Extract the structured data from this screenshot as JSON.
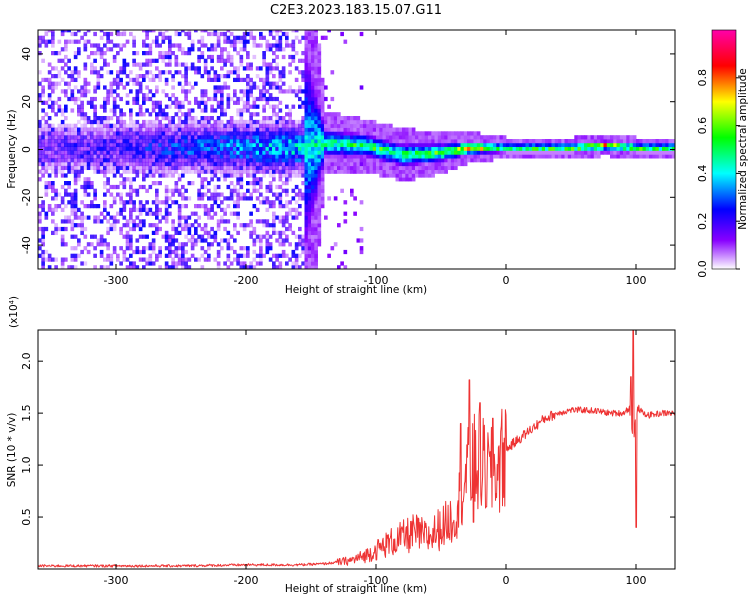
{
  "figure": {
    "title": "C2E3.2023.183.15.07.G11"
  },
  "chart_data": [
    {
      "type": "heatmap",
      "xlabel": "Height of straight line (km)",
      "ylabel": "Frequency (Hz)",
      "xlim": [
        -360,
        130
      ],
      "ylim": [
        -50,
        50
      ],
      "x_ticks": [
        -300,
        -200,
        -100,
        0,
        100
      ],
      "y_ticks": [
        -40,
        -20,
        0,
        20,
        40
      ],
      "grid": false,
      "colorbar": {
        "label": "Normalized spectral amplitude",
        "range": [
          0,
          1
        ],
        "ticks": [
          "0.0",
          "0.2",
          "0.4",
          "0.6",
          "0.8"
        ],
        "tick_values": [
          0.0,
          0.2,
          0.4,
          0.6,
          0.8
        ],
        "colormap": [
          "#ffffff",
          "#8800ff",
          "#0000ff",
          "#00ffff",
          "#00ff00",
          "#ffff00",
          "#ff0000",
          "#ff00aa"
        ]
      },
      "signal_band": [
        {
          "x": -360,
          "center": 0,
          "half_width": 47,
          "peak": 0.15
        },
        {
          "x": -300,
          "center": 0,
          "half_width": 47,
          "peak": 0.18
        },
        {
          "x": -250,
          "center": 0,
          "half_width": 45,
          "peak": 0.25
        },
        {
          "x": -200,
          "center": 0,
          "half_width": 45,
          "peak": 0.3
        },
        {
          "x": -155,
          "center": 0,
          "half_width": 45,
          "peak": 0.35
        },
        {
          "x": -140,
          "center": 2,
          "half_width": 6,
          "peak": 0.45
        },
        {
          "x": -110,
          "center": 1,
          "half_width": 5,
          "peak": 0.5
        },
        {
          "x": -80,
          "center": -3,
          "half_width": 5,
          "peak": 0.5
        },
        {
          "x": -50,
          "center": -2,
          "half_width": 4,
          "peak": 0.55
        },
        {
          "x": -30,
          "center": 0,
          "half_width": 3,
          "peak": 0.75
        },
        {
          "x": 0,
          "center": 0,
          "half_width": 2,
          "peak": 0.55
        },
        {
          "x": 50,
          "center": 0,
          "half_width": 2,
          "peak": 0.6
        },
        {
          "x": 75,
          "center": 1,
          "half_width": 2,
          "peak": 0.9
        },
        {
          "x": 100,
          "center": 0,
          "half_width": 2,
          "peak": 0.6
        },
        {
          "x": 130,
          "center": 0,
          "half_width": 2,
          "peak": 0.55
        }
      ]
    },
    {
      "type": "line",
      "xlabel": "Height of straight line (km)",
      "ylabel": "SNR (10 * v/v)",
      "y_scale_label": "(x10⁴)",
      "xlim": [
        -360,
        130
      ],
      "ylim": [
        0,
        2.3
      ],
      "x_ticks": [
        -300,
        -200,
        -100,
        0,
        100
      ],
      "y_ticks": [
        "0.5",
        "1.0",
        "1.5",
        "2.0"
      ],
      "y_tick_values": [
        0.5,
        1.0,
        1.5,
        2.0
      ],
      "grid": false,
      "color": "#ee3333",
      "series": [
        {
          "x": [
            -360,
            -300,
            -250,
            -200,
            -160,
            -140,
            -120,
            -110,
            -100,
            -90,
            -80,
            -70,
            -60,
            -50,
            -40,
            -35,
            -30,
            -25,
            -20,
            -15,
            -10,
            -5,
            0,
            10,
            20,
            30,
            40,
            50,
            60,
            70,
            80,
            90,
            95,
            98,
            100,
            102,
            105,
            110,
            120,
            130
          ],
          "y": [
            0.03,
            0.03,
            0.03,
            0.04,
            0.04,
            0.05,
            0.08,
            0.12,
            0.18,
            0.25,
            0.3,
            0.35,
            0.3,
            0.4,
            0.5,
            0.7,
            0.9,
            1.0,
            1.0,
            0.95,
            0.9,
            1.0,
            1.15,
            1.25,
            1.35,
            1.45,
            1.5,
            1.53,
            1.53,
            1.52,
            1.5,
            1.5,
            1.55,
            1.2,
            1.5,
            1.55,
            1.5,
            1.48,
            1.5,
            1.5
          ],
          "spikes": [
            [
              -35,
              1.4
            ],
            [
              -28,
              1.82
            ],
            [
              -25,
              0.45
            ],
            [
              -20,
              1.6
            ],
            [
              -15,
              0.6
            ],
            [
              -10,
              1.45
            ],
            [
              98,
              2.3
            ],
            [
              100,
              0.4
            ],
            [
              96,
              1.85
            ]
          ]
        }
      ]
    }
  ]
}
